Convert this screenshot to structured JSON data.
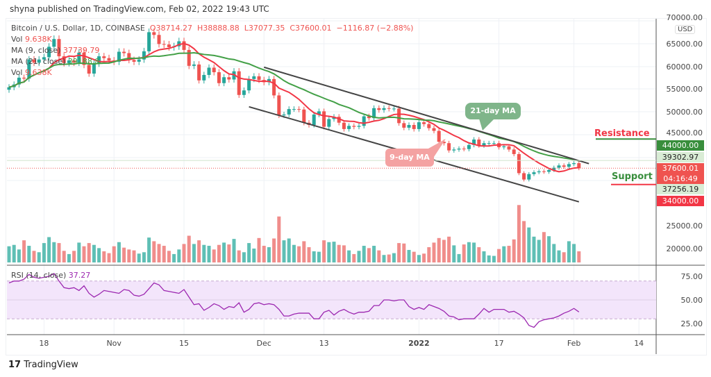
{
  "header": {
    "published": "shyna published on TradingView.com, Feb 02, 2022 19:43 UTC"
  },
  "legend": {
    "symbol": "Bitcoin / U.S. Dollar, 1D, COINBASE",
    "open": "O38714.27",
    "high": "H38888.88",
    "low": "L37077.35",
    "close": "C37600.01",
    "change": "−1116.87 (−2.88%)",
    "vol_label": "Vol",
    "vol_value": "9.638K",
    "ma9_label": "MA (9, close)",
    "ma9_value": "37739.79",
    "ma21_label": "MA (21, close)",
    "ma21_value": "39188.8",
    "vol2_label": "Vol",
    "vol2_value": "9.638K",
    "rsi_label": "RSI (14, close)",
    "rsi_value": "37.27"
  },
  "annotations": {
    "ma21": "21-day MA",
    "ma9": "9-day MA",
    "resistance": "Resistance",
    "support": "Support"
  },
  "price_tags": {
    "resistance": "44000.00",
    "ma21": "39302.97",
    "last": "37600.01",
    "countdown": "04:16:49",
    "ma9": "37256.19",
    "support": "34000.00",
    "currency": "USD"
  },
  "colors": {
    "up": "#26a69a",
    "down": "#ef5350",
    "ma9": "#f23645",
    "ma21": "#43a047",
    "rsi": "#9c27b0",
    "resistance": "#388e3c",
    "support": "#f23645"
  },
  "footer": {
    "brand": "TradingView"
  },
  "chart_data": {
    "type": "candlestick",
    "price_axis": {
      "ticks": [
        "70000.00",
        "65000.00",
        "60000.00",
        "55000.00",
        "50000.00",
        "45000.00"
      ],
      "range": [
        30000,
        70000
      ]
    },
    "volume_axis": {
      "ticks": [
        "25000.00",
        "20000.00"
      ]
    },
    "rsi_axis": {
      "ticks": [
        "75.00",
        "50.00",
        "25.00"
      ],
      "band": [
        30,
        70
      ]
    },
    "x_ticks": [
      {
        "label": "18",
        "day": 7
      },
      {
        "label": "Nov",
        "day": 21
      },
      {
        "label": "15",
        "day": 35
      },
      {
        "label": "Dec",
        "day": 51
      },
      {
        "label": "13",
        "day": 63
      },
      {
        "label": "2022",
        "day": 82
      },
      {
        "label": "17",
        "day": 98
      },
      {
        "label": "Feb",
        "day": 113
      },
      {
        "label": "14",
        "day": 126
      }
    ],
    "first_date": "2021-10-11",
    "close": [
      55400,
      56000,
      57500,
      57300,
      61500,
      60800,
      61500,
      62000,
      64300,
      66000,
      62200,
      60700,
      61300,
      60800,
      63000,
      60300,
      58400,
      60600,
      62200,
      61800,
      61300,
      61000,
      63200,
      62900,
      61400,
      61000,
      61500,
      63300,
      67500,
      66900,
      64900,
      64800,
      64200,
      64400,
      65500,
      63600,
      60100,
      60400,
      56900,
      58100,
      59700,
      58700,
      56300,
      57600,
      57100,
      58900,
      53700,
      54700,
      57200,
      57800,
      57000,
      56500,
      57200,
      53600,
      49200,
      49400,
      50600,
      50600,
      50500,
      47600,
      47100,
      49400,
      50100,
      46700,
      48400,
      48900,
      47600,
      46200,
      46900,
      46700,
      46900,
      49000,
      48600,
      50800,
      50400,
      50800,
      50700,
      50700,
      47500,
      46500,
      47100,
      46200,
      47700,
      47300,
      46400,
      45800,
      43400,
      43100,
      41500,
      41700,
      41900,
      41800,
      42700,
      43900,
      42600,
      43100,
      43100,
      43100,
      42200,
      42400,
      41700,
      40700,
      36500,
      35100,
      36300,
      36700,
      36900,
      36800,
      37200,
      37700,
      38200,
      37900,
      38500,
      38700,
      37600
    ],
    "volume": [
      20500,
      20800,
      19800,
      21800,
      20600,
      19500,
      19200,
      21200,
      22500,
      21400,
      21200,
      19500,
      18800,
      19500,
      21300,
      20500,
      21200,
      20800,
      20100,
      19400,
      19000,
      20500,
      21400,
      20200,
      19800,
      19600,
      18900,
      19200,
      22400,
      21600,
      21000,
      20600,
      19500,
      18800,
      19800,
      21000,
      22800,
      21000,
      21800,
      20800,
      20600,
      19800,
      20800,
      21300,
      20900,
      22100,
      19600,
      19200,
      21200,
      20000,
      22300,
      20600,
      20300,
      22200,
      27000,
      21800,
      22200,
      20800,
      20500,
      21600,
      20300,
      19400,
      19300,
      21800,
      21400,
      21500,
      20800,
      20700,
      19600,
      18800,
      19500,
      20600,
      20100,
      20600,
      19600,
      18600,
      18700,
      19000,
      21200,
      21100,
      19700,
      19300,
      18600,
      18900,
      20300,
      21300,
      22300,
      21900,
      22600,
      20700,
      18800,
      20900,
      21400,
      21300,
      20300,
      19400,
      18500,
      18400,
      19900,
      20500,
      20600,
      22000,
      29500,
      26000,
      24600,
      22600,
      21900,
      23600,
      22700,
      21000,
      19600,
      19200,
      21600,
      21000,
      19400
    ],
    "rsi": [
      68,
      70,
      70,
      72,
      77,
      74,
      73,
      74,
      75,
      78,
      70,
      63,
      62,
      63,
      60,
      65,
      57,
      53,
      56,
      60,
      59,
      58,
      57,
      61,
      60,
      55,
      54,
      56,
      62,
      68,
      66,
      60,
      59,
      58,
      57,
      61,
      53,
      45,
      46,
      39,
      42,
      46,
      44,
      40,
      43,
      42,
      47,
      37,
      40,
      46,
      47,
      45,
      46,
      45,
      40,
      33,
      33,
      35,
      36,
      36,
      36,
      30,
      30,
      37,
      39,
      34,
      38,
      40,
      37,
      35,
      37,
      37,
      38,
      44,
      44,
      50,
      50,
      49,
      50,
      50,
      43,
      40,
      42,
      40,
      45,
      43,
      41,
      38,
      33,
      32,
      29,
      30,
      30,
      30,
      35,
      41,
      37,
      40,
      40,
      40,
      37,
      38,
      35,
      31,
      23,
      21,
      27,
      29,
      30,
      31,
      33,
      36,
      38,
      41,
      37.27
    ],
    "ma_periods": [
      9,
      21
    ],
    "channel": {
      "upper": [
        {
          "day": 51,
          "price": 59800
        },
        {
          "day": 116,
          "price": 38600
        }
      ],
      "lower": [
        {
          "day": 48,
          "price": 51100
        },
        {
          "day": 114,
          "price": 30200
        }
      ]
    },
    "levels": {
      "resistance": 44000,
      "support": 34000
    }
  }
}
